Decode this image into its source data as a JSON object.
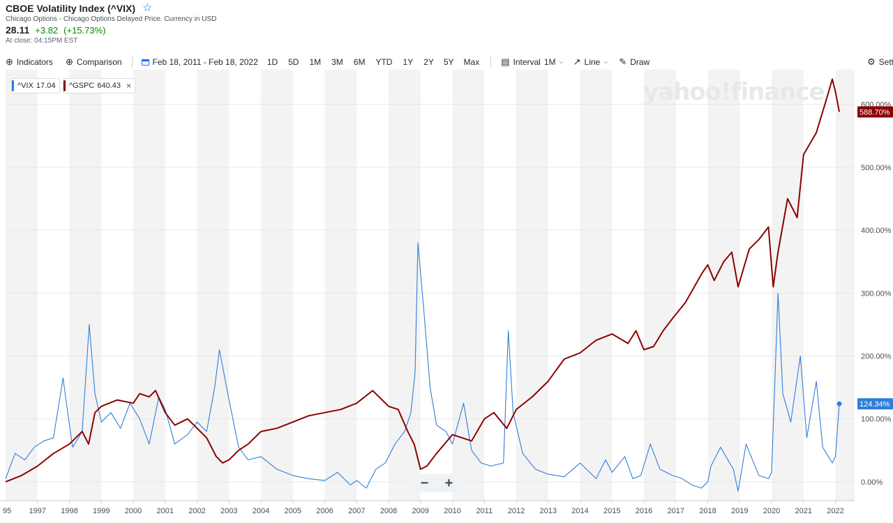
{
  "header": {
    "title": "CBOE Volatility Index (^VIX)",
    "subtitle": "Chicago Options - Chicago Options Delayed Price. Currency in USD",
    "price": "28.11",
    "change": "+3.82",
    "change_pct": "(+15.73%)",
    "close_time": "At close: 04:15PM EST"
  },
  "toolbar": {
    "indicators": "Indicators",
    "comparison": "Comparison",
    "date_range": "Feb 18, 2011 - Feb 18, 2022",
    "ranges": [
      "1D",
      "5D",
      "1M",
      "3M",
      "6M",
      "YTD",
      "1Y",
      "2Y",
      "5Y",
      "Max"
    ],
    "interval": "Interval",
    "interval_value": "1M",
    "chart_type": "Line",
    "draw": "Draw",
    "settings": "Settings"
  },
  "legend": {
    "vix_label": "^VIX",
    "vix_value": "17.04",
    "gspc_label": "^GSPC",
    "gspc_value": "640.43"
  },
  "watermark": "yahoo!finance",
  "zoom": {
    "minus": "−",
    "plus": "+"
  },
  "colors": {
    "vix": "#2f7ed8",
    "gspc": "#8b0000",
    "band": "#f3f3f3"
  },
  "chart_data": {
    "type": "line",
    "title": "",
    "xlabel": "",
    "ylabel": "",
    "y_unit": "%",
    "xlim": [
      1996.0,
      2022.6
    ],
    "ylim": [
      -30,
      655
    ],
    "y_ticks": [
      0,
      100,
      200,
      300,
      400,
      500,
      600
    ],
    "y_tick_labels": [
      "0.00%",
      "100.00%",
      "200.00%",
      "300.00%",
      "400.00%",
      "500.00%",
      "600.00%"
    ],
    "x_ticks": [
      1997,
      1998,
      1999,
      2000,
      2001,
      2002,
      2003,
      2004,
      2005,
      2006,
      2007,
      2008,
      2009,
      2010,
      2011,
      2012,
      2013,
      2014,
      2015,
      2016,
      2017,
      2018,
      2019,
      2020,
      2021,
      2022
    ],
    "x_tick_labels": [
      "1997",
      "1998",
      "1999",
      "2000",
      "2001",
      "2002",
      "2003",
      "2004",
      "2005",
      "2006",
      "2007",
      "2008",
      "2009",
      "2010",
      "2011",
      "2012",
      "2013",
      "2014",
      "2015",
      "2016",
      "2017",
      "2018",
      "2019",
      "2020",
      "2021",
      "2022"
    ],
    "first_tick_fragment": "95",
    "grid": "alternating-year-bands",
    "legend_position": "top-left",
    "series": [
      {
        "name": "^VIX",
        "last_label": "124.34%",
        "x": [
          1996.0,
          1996.3,
          1996.6,
          1996.9,
          1997.2,
          1997.5,
          1997.8,
          1997.92,
          1998.1,
          1998.4,
          1998.62,
          1998.8,
          1999.0,
          1999.3,
          1999.6,
          1999.9,
          2000.2,
          2000.5,
          2000.8,
          2001.0,
          2001.3,
          2001.7,
          2002.0,
          2002.3,
          2002.55,
          2002.7,
          2003.0,
          2003.3,
          2003.6,
          2004.0,
          2004.5,
          2005.0,
          2005.5,
          2006.0,
          2006.4,
          2006.8,
          2007.0,
          2007.3,
          2007.6,
          2007.9,
          2008.2,
          2008.5,
          2008.7,
          2008.83,
          2008.92,
          2009.1,
          2009.3,
          2009.5,
          2009.8,
          2010.0,
          2010.35,
          2010.6,
          2010.9,
          2011.2,
          2011.6,
          2011.75,
          2011.9,
          2012.2,
          2012.6,
          2013.0,
          2013.5,
          2014.0,
          2014.5,
          2014.8,
          2015.0,
          2015.4,
          2015.65,
          2015.9,
          2016.2,
          2016.5,
          2016.9,
          2017.2,
          2017.5,
          2017.8,
          2018.0,
          2018.1,
          2018.4,
          2018.8,
          2018.95,
          2019.2,
          2019.6,
          2019.9,
          2020.0,
          2020.2,
          2020.35,
          2020.6,
          2020.9,
          2021.1,
          2021.4,
          2021.6,
          2021.9,
          2022.0,
          2022.12
        ],
        "values": [
          5,
          45,
          35,
          55,
          65,
          70,
          165,
          120,
          55,
          80,
          250,
          140,
          95,
          110,
          85,
          125,
          100,
          60,
          135,
          115,
          60,
          75,
          95,
          80,
          150,
          210,
          130,
          55,
          35,
          40,
          20,
          10,
          5,
          2,
          15,
          -5,
          2,
          -10,
          20,
          30,
          60,
          80,
          110,
          175,
          380,
          275,
          150,
          90,
          80,
          60,
          125,
          50,
          30,
          25,
          30,
          240,
          110,
          45,
          20,
          12,
          8,
          30,
          5,
          35,
          15,
          40,
          5,
          10,
          60,
          20,
          10,
          5,
          -5,
          -10,
          0,
          25,
          55,
          20,
          -15,
          60,
          10,
          5,
          15,
          300,
          140,
          95,
          200,
          70,
          160,
          55,
          30,
          40,
          124
        ]
      },
      {
        "name": "^GSPC",
        "last_label": "588.70%",
        "x": [
          1996.0,
          1996.5,
          1997.0,
          1997.5,
          1998.0,
          1998.4,
          1998.6,
          1998.8,
          1999.0,
          1999.5,
          2000.0,
          2000.2,
          2000.5,
          2000.7,
          2001.0,
          2001.3,
          2001.7,
          2002.0,
          2002.3,
          2002.6,
          2002.8,
          2003.0,
          2003.3,
          2003.6,
          2004.0,
          2004.5,
          2005.0,
          2005.5,
          2006.0,
          2006.5,
          2007.0,
          2007.5,
          2007.8,
          2008.0,
          2008.3,
          2008.6,
          2008.8,
          2009.0,
          2009.2,
          2009.5,
          2010.0,
          2010.3,
          2010.6,
          2011.0,
          2011.3,
          2011.7,
          2012.0,
          2012.5,
          2013.0,
          2013.5,
          2014.0,
          2014.5,
          2015.0,
          2015.5,
          2015.75,
          2016.0,
          2016.3,
          2016.6,
          2016.9,
          2017.3,
          2017.8,
          2018.0,
          2018.2,
          2018.5,
          2018.75,
          2018.95,
          2019.3,
          2019.6,
          2019.9,
          2020.05,
          2020.2,
          2020.5,
          2020.8,
          2021.0,
          2021.4,
          2021.7,
          2021.9,
          2022.0,
          2022.12
        ],
        "values": [
          0,
          10,
          25,
          45,
          60,
          80,
          60,
          110,
          120,
          130,
          125,
          140,
          135,
          145,
          110,
          90,
          100,
          85,
          70,
          40,
          30,
          35,
          50,
          60,
          80,
          85,
          95,
          105,
          110,
          115,
          125,
          145,
          130,
          120,
          115,
          80,
          60,
          20,
          25,
          45,
          75,
          70,
          65,
          100,
          110,
          85,
          115,
          135,
          160,
          195,
          205,
          225,
          235,
          220,
          240,
          210,
          215,
          240,
          260,
          285,
          330,
          345,
          320,
          350,
          365,
          310,
          370,
          385,
          405,
          310,
          365,
          450,
          420,
          520,
          555,
          605,
          640,
          620,
          588
        ]
      }
    ]
  }
}
